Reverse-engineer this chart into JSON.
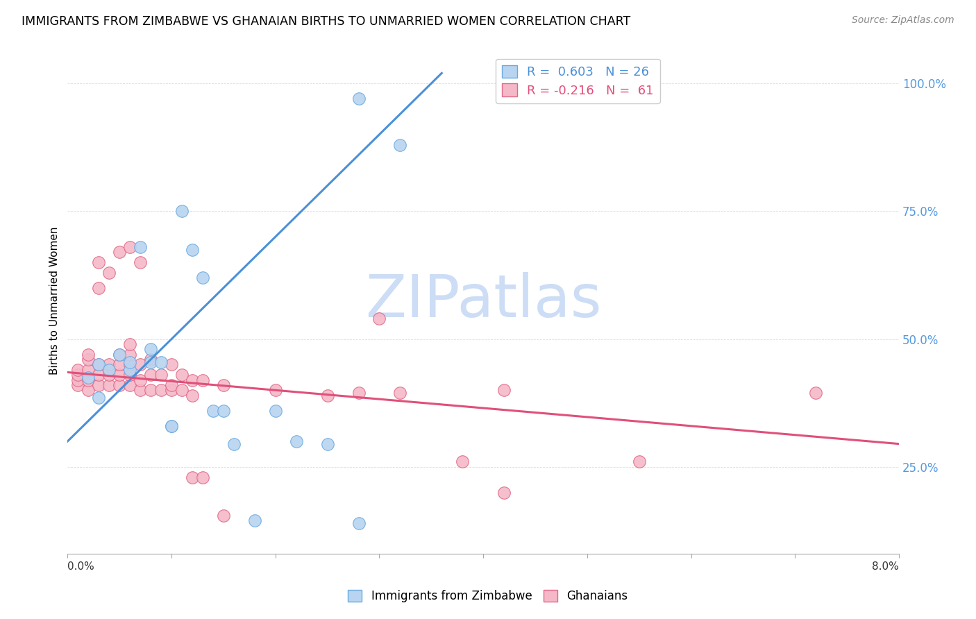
{
  "title": "IMMIGRANTS FROM ZIMBABWE VS GHANAIAN BIRTHS TO UNMARRIED WOMEN CORRELATION CHART",
  "source": "Source: ZipAtlas.com",
  "ylabel": "Births to Unmarried Women",
  "ytick_labels": [
    "25.0%",
    "50.0%",
    "75.0%",
    "100.0%"
  ],
  "ytick_vals": [
    0.25,
    0.5,
    0.75,
    1.0
  ],
  "xlim": [
    0.0,
    0.08
  ],
  "ylim": [
    0.08,
    1.07
  ],
  "legend_line1": "R =  0.603   N = 26",
  "legend_line2": "R = -0.216   N =  61",
  "blue_color": "#b8d4f0",
  "blue_edge_color": "#6aaae0",
  "blue_line_color": "#4a90d9",
  "pink_color": "#f5b8c8",
  "pink_edge_color": "#e06888",
  "pink_line_color": "#e0507a",
  "ytick_color": "#5599dd",
  "watermark_color": "#ccddf5",
  "blue_scatter": [
    [
      0.002,
      0.425
    ],
    [
      0.003,
      0.45
    ],
    [
      0.003,
      0.385
    ],
    [
      0.004,
      0.44
    ],
    [
      0.005,
      0.47
    ],
    [
      0.006,
      0.44
    ],
    [
      0.006,
      0.455
    ],
    [
      0.007,
      0.68
    ],
    [
      0.008,
      0.455
    ],
    [
      0.008,
      0.48
    ],
    [
      0.009,
      0.455
    ],
    [
      0.01,
      0.33
    ],
    [
      0.01,
      0.33
    ],
    [
      0.011,
      0.75
    ],
    [
      0.012,
      0.675
    ],
    [
      0.013,
      0.62
    ],
    [
      0.014,
      0.36
    ],
    [
      0.015,
      0.36
    ],
    [
      0.016,
      0.295
    ],
    [
      0.018,
      0.145
    ],
    [
      0.02,
      0.36
    ],
    [
      0.022,
      0.3
    ],
    [
      0.025,
      0.295
    ],
    [
      0.028,
      0.97
    ],
    [
      0.028,
      0.14
    ],
    [
      0.032,
      0.88
    ]
  ],
  "pink_scatter": [
    [
      0.001,
      0.41
    ],
    [
      0.001,
      0.42
    ],
    [
      0.001,
      0.43
    ],
    [
      0.001,
      0.44
    ],
    [
      0.002,
      0.4
    ],
    [
      0.002,
      0.42
    ],
    [
      0.002,
      0.44
    ],
    [
      0.002,
      0.46
    ],
    [
      0.002,
      0.47
    ],
    [
      0.003,
      0.41
    ],
    [
      0.003,
      0.43
    ],
    [
      0.003,
      0.45
    ],
    [
      0.003,
      0.6
    ],
    [
      0.003,
      0.65
    ],
    [
      0.004,
      0.41
    ],
    [
      0.004,
      0.43
    ],
    [
      0.004,
      0.44
    ],
    [
      0.004,
      0.45
    ],
    [
      0.004,
      0.63
    ],
    [
      0.005,
      0.41
    ],
    [
      0.005,
      0.43
    ],
    [
      0.005,
      0.45
    ],
    [
      0.005,
      0.47
    ],
    [
      0.005,
      0.67
    ],
    [
      0.006,
      0.41
    ],
    [
      0.006,
      0.43
    ],
    [
      0.006,
      0.45
    ],
    [
      0.006,
      0.47
    ],
    [
      0.006,
      0.49
    ],
    [
      0.006,
      0.68
    ],
    [
      0.007,
      0.4
    ],
    [
      0.007,
      0.42
    ],
    [
      0.007,
      0.45
    ],
    [
      0.007,
      0.65
    ],
    [
      0.008,
      0.4
    ],
    [
      0.008,
      0.43
    ],
    [
      0.008,
      0.46
    ],
    [
      0.009,
      0.4
    ],
    [
      0.009,
      0.43
    ],
    [
      0.01,
      0.4
    ],
    [
      0.01,
      0.41
    ],
    [
      0.01,
      0.45
    ],
    [
      0.011,
      0.4
    ],
    [
      0.011,
      0.43
    ],
    [
      0.012,
      0.23
    ],
    [
      0.012,
      0.39
    ],
    [
      0.012,
      0.42
    ],
    [
      0.013,
      0.23
    ],
    [
      0.013,
      0.42
    ],
    [
      0.015,
      0.155
    ],
    [
      0.015,
      0.41
    ],
    [
      0.02,
      0.4
    ],
    [
      0.025,
      0.39
    ],
    [
      0.028,
      0.395
    ],
    [
      0.03,
      0.54
    ],
    [
      0.032,
      0.395
    ],
    [
      0.038,
      0.26
    ],
    [
      0.042,
      0.2
    ],
    [
      0.042,
      0.4
    ],
    [
      0.055,
      0.26
    ],
    [
      0.072,
      0.395
    ]
  ],
  "blue_trend_x": [
    0.0,
    0.036
  ],
  "blue_trend_y": [
    0.3,
    1.02
  ],
  "pink_trend_x": [
    0.0,
    0.08
  ],
  "pink_trend_y": [
    0.435,
    0.295
  ],
  "xticks": [
    0.0,
    0.01,
    0.02,
    0.03,
    0.04,
    0.05,
    0.06,
    0.07,
    0.08
  ],
  "grid_color": "#dddddd",
  "bottom_legend_labels": [
    "Immigrants from Zimbabwe",
    "Ghanaians"
  ]
}
